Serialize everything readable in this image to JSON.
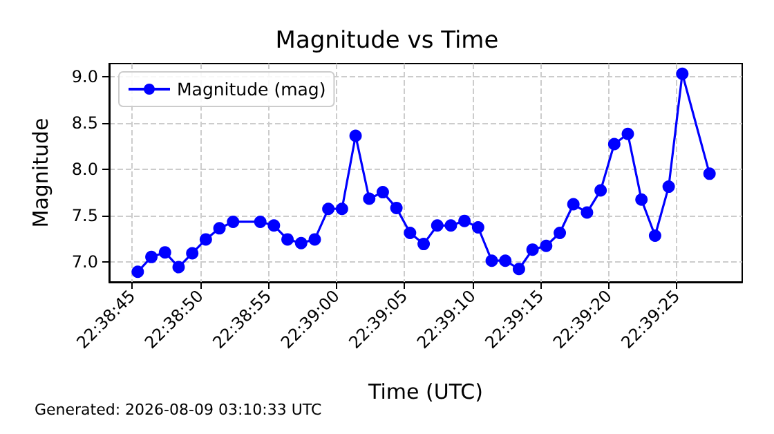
{
  "chart_data": {
    "type": "line",
    "title": "Magnitude vs Time",
    "xlabel": "Time (UTC)",
    "ylabel": "Magnitude",
    "annotations": [
      "Generated: 2026-08-09 03:10:33 UTC"
    ],
    "x": [
      22.645944,
      22.646222,
      22.6465,
      22.646778,
      22.647056,
      22.647333,
      22.647611,
      22.647889,
      22.648444,
      22.648722,
      22.649,
      22.649278,
      22.649556,
      22.649833,
      22.650111,
      22.650389,
      22.650667,
      22.650944,
      22.651222,
      22.6515,
      22.651778,
      22.652056,
      22.652333,
      22.652611,
      22.652889,
      22.653167,
      22.653444,
      22.653722,
      22.654,
      22.654278,
      22.654556,
      22.654833,
      22.655111,
      22.655389,
      22.655667,
      22.655944,
      22.656222,
      22.6565,
      22.656778,
      22.657056,
      22.657611
    ],
    "series": [
      {
        "name": "Magnitude (mag)",
        "color": "#0000ff",
        "values": [
          6.89,
          7.05,
          7.1,
          6.94,
          7.09,
          7.24,
          7.36,
          7.43,
          7.43,
          7.39,
          7.24,
          7.2,
          7.24,
          7.57,
          7.57,
          8.36,
          7.68,
          7.75,
          7.58,
          7.31,
          7.19,
          7.39,
          7.39,
          7.44,
          7.37,
          7.01,
          7.01,
          6.92,
          7.13,
          7.17,
          7.31,
          7.62,
          7.53,
          7.77,
          8.27,
          8.38,
          7.67,
          7.28,
          7.81,
          9.03,
          7.95
        ]
      }
    ],
    "xlim": [
      22.645361,
      22.658278
    ],
    "xticks": [
      {
        "value": 22.645833,
        "label": "22:38:45"
      },
      {
        "value": 22.647222,
        "label": "22:38:50"
      },
      {
        "value": 22.648611,
        "label": "22:38:55"
      },
      {
        "value": 22.65,
        "label": "22:39:00"
      },
      {
        "value": 22.651389,
        "label": "22:39:05"
      },
      {
        "value": 22.652778,
        "label": "22:39:10"
      },
      {
        "value": 22.654167,
        "label": "22:39:15"
      },
      {
        "value": 22.655556,
        "label": "22:39:20"
      },
      {
        "value": 22.656944,
        "label": "22:39:25"
      }
    ],
    "ylim": [
      6.78,
      9.14
    ],
    "yticks": [
      {
        "value": 7,
        "label": "7.0"
      },
      7.5,
      {
        "value": 8,
        "label": "8.0"
      },
      8.5,
      {
        "value": 9,
        "label": "9.0"
      }
    ],
    "grid": true,
    "legend": "top left",
    "marker": "circle",
    "line_style": "solid"
  }
}
